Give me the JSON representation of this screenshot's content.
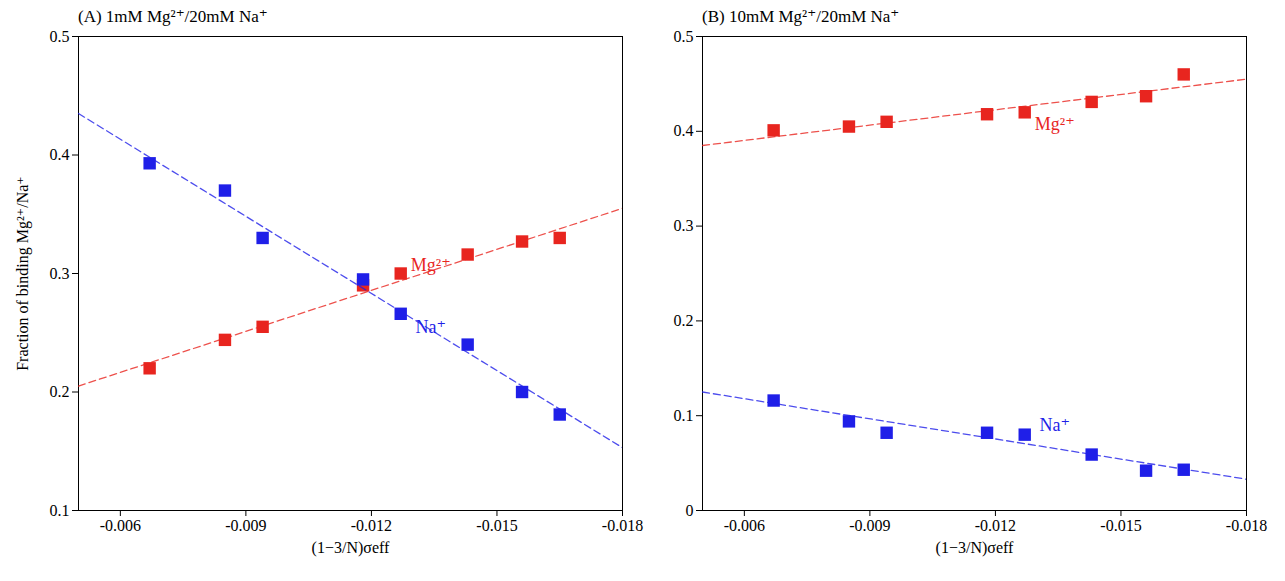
{
  "chart_data": [
    {
      "type": "scatter",
      "title": "(A) 1mM Mg²⁺/20mM Na⁺",
      "x_label": "(1−3/N)σeff",
      "y_label": "Fraction of binding Mg²⁺/Na⁺",
      "x": [
        -0.0067,
        -0.0085,
        -0.0094,
        -0.0118,
        -0.0127,
        -0.0143,
        -0.0156,
        -0.0165
      ],
      "series": [
        {
          "name": "Mg²⁺",
          "color": "#e8251f",
          "marker": "square",
          "values": [
            0.22,
            0.244,
            0.255,
            0.29,
            0.3,
            0.316,
            0.327,
            0.33
          ],
          "fit": {
            "x": [
              -0.005,
              -0.018
            ],
            "values": [
              0.205,
              0.355
            ],
            "line_style": "dashed"
          }
        },
        {
          "name": "Na⁺",
          "color": "#1f1fe8",
          "marker": "square",
          "values": [
            0.393,
            0.37,
            0.33,
            0.295,
            0.266,
            0.24,
            0.2,
            0.181
          ],
          "fit": {
            "x": [
              -0.005,
              -0.018
            ],
            "values": [
              0.435,
              0.153
            ],
            "line_style": "dashed"
          }
        }
      ],
      "xlim": [
        -0.005,
        -0.018
      ],
      "xticks": [
        -0.006,
        -0.009,
        -0.012,
        -0.015,
        -0.018
      ],
      "ylim": [
        0.1,
        0.5
      ],
      "yticks": [
        0.1,
        0.2,
        0.3,
        0.4,
        0.5
      ],
      "grid": false
    },
    {
      "type": "scatter",
      "title": "(B) 10mM Mg²⁺/20mM Na⁺",
      "x_label": "(1−3/N)σeff",
      "x": [
        -0.0067,
        -0.0085,
        -0.0094,
        -0.0118,
        -0.0127,
        -0.0143,
        -0.0156,
        -0.0165
      ],
      "series": [
        {
          "name": "Mg²⁺",
          "color": "#e8251f",
          "marker": "square",
          "values": [
            0.401,
            0.405,
            0.41,
            0.418,
            0.42,
            0.431,
            0.437,
            0.46
          ],
          "fit": {
            "x": [
              -0.005,
              -0.018
            ],
            "values": [
              0.385,
              0.455
            ],
            "line_style": "dashed"
          }
        },
        {
          "name": "Na⁺",
          "color": "#1f1fe8",
          "marker": "square",
          "values": [
            0.116,
            0.094,
            0.082,
            0.082,
            0.08,
            0.059,
            0.042,
            0.043
          ],
          "fit": {
            "x": [
              -0.005,
              -0.018
            ],
            "values": [
              0.125,
              0.033
            ],
            "line_style": "dashed"
          }
        }
      ],
      "xlim": [
        -0.005,
        -0.018
      ],
      "xticks": [
        -0.006,
        -0.009,
        -0.012,
        -0.015,
        -0.018
      ],
      "ylim": [
        0,
        0.5
      ],
      "yticks": [
        0,
        0.1,
        0.2,
        0.3,
        0.4,
        0.5
      ],
      "grid": false
    }
  ]
}
